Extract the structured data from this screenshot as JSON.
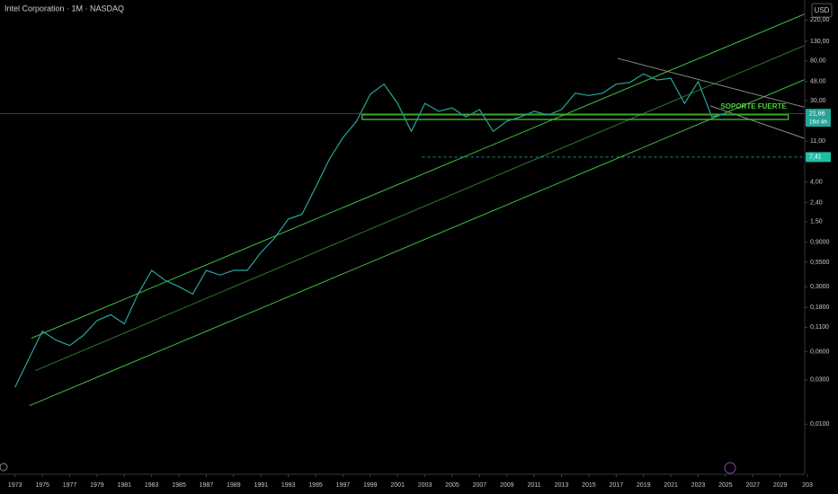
{
  "chart_data": {
    "type": "line",
    "title": "Intel Corporation · 1M · NASDAQ",
    "currency": "USD",
    "log_scale": true,
    "grid": false,
    "x": [
      1973,
      1974,
      1975,
      1976,
      1977,
      1978,
      1979,
      1980,
      1981,
      1982,
      1983,
      1984,
      1985,
      1986,
      1987,
      1988,
      1989,
      1990,
      1991,
      1992,
      1993,
      1994,
      1995,
      1996,
      1997,
      1998,
      1999,
      2000,
      2001,
      2002,
      2003,
      2004,
      2005,
      2006,
      2007,
      2008,
      2009,
      2010,
      2011,
      2012,
      2013,
      2014,
      2015,
      2016,
      2017,
      2018,
      2019,
      2020,
      2021,
      2022,
      2023,
      2024,
      2025
    ],
    "series": [
      {
        "color": "#26a69a",
        "values": [
          0.025,
          0.05,
          0.1,
          0.08,
          0.07,
          0.09,
          0.13,
          0.15,
          0.12,
          0.25,
          0.45,
          0.35,
          0.3,
          0.25,
          0.45,
          0.4,
          0.45,
          0.45,
          0.7,
          1.0,
          1.6,
          1.8,
          3.5,
          7,
          12,
          18,
          35,
          45,
          28,
          14,
          28,
          23,
          25,
          20,
          24,
          14,
          18,
          20,
          23,
          21,
          24,
          36,
          34,
          36,
          45,
          47,
          58,
          50,
          52,
          28,
          48,
          20,
          21.66
        ]
      }
    ],
    "xlim": [
      1971.9,
      2030.8
    ],
    "ylim": [
      0.0029,
      361
    ],
    "xticks": [
      1973,
      1975,
      1977,
      1979,
      1981,
      1983,
      1985,
      1987,
      1989,
      1991,
      1993,
      1995,
      1997,
      1999,
      2001,
      2003,
      2005,
      2007,
      2009,
      2011,
      2013,
      2015,
      2017,
      2019,
      2021,
      2023,
      2025,
      2027,
      2029,
      {
        "value": 2031,
        "label": "203"
      }
    ],
    "yticks": [
      {
        "value": 220,
        "label": "220,00"
      },
      {
        "value": 130,
        "label": "130,00"
      },
      {
        "value": 80,
        "label": "80,00"
      },
      {
        "value": 48,
        "label": "48,00"
      },
      {
        "value": 30,
        "label": "30,00"
      },
      {
        "value": 11,
        "label": "11,00"
      },
      {
        "value": 4,
        "label": "4,00"
      },
      {
        "value": 2.4,
        "label": "2,40"
      },
      {
        "value": 1.5,
        "label": "1,50"
      },
      {
        "value": 0.9,
        "label": "0,9000"
      },
      {
        "value": 0.55,
        "label": "0,5500"
      },
      {
        "value": 0.3,
        "label": "0,3000"
      },
      {
        "value": 0.18,
        "label": "0,1800"
      },
      {
        "value": 0.11,
        "label": "0,1100"
      },
      {
        "value": 0.06,
        "label": "0,0600"
      },
      {
        "value": 0.03,
        "label": "0,0300"
      },
      {
        "value": 0.01,
        "label": "0,0100"
      }
    ],
    "trendlines": [
      {
        "x": [
          1974.2,
          2030.9
        ],
        "y": [
          0.084,
          259
        ],
        "color": "#3fbf3f"
      },
      {
        "x": [
          1974.5,
          2030.9
        ],
        "y": [
          0.0377,
          119
        ],
        "color": "#2a7a2a"
      },
      {
        "x": [
          1974.05,
          2030.9
        ],
        "y": [
          0.0158,
          51.2
        ],
        "color": "#3fbf3f"
      },
      {
        "x": [
          2017.1,
          2030.9
        ],
        "y": [
          85.3,
          25.2
        ],
        "color": "#8a8a8a"
      },
      {
        "x": [
          2023.9,
          2030.9
        ],
        "y": [
          26.3,
          11.6
        ],
        "color": "#8a8a8a"
      }
    ],
    "zone": {
      "x": [
        1998.4,
        2029.6
      ],
      "y": [
        18.8,
        21.1
      ],
      "label": "SOPORTE FUERTE",
      "color": "#4cd137"
    },
    "price_lines": [
      {
        "value": 21.66,
        "label": "21,66",
        "countdown": "16d 4h",
        "color": "#26a69a"
      },
      {
        "value": 7.41,
        "label": "7,41",
        "x_start": 2002.8,
        "color": "#1fbfa5"
      }
    ]
  }
}
